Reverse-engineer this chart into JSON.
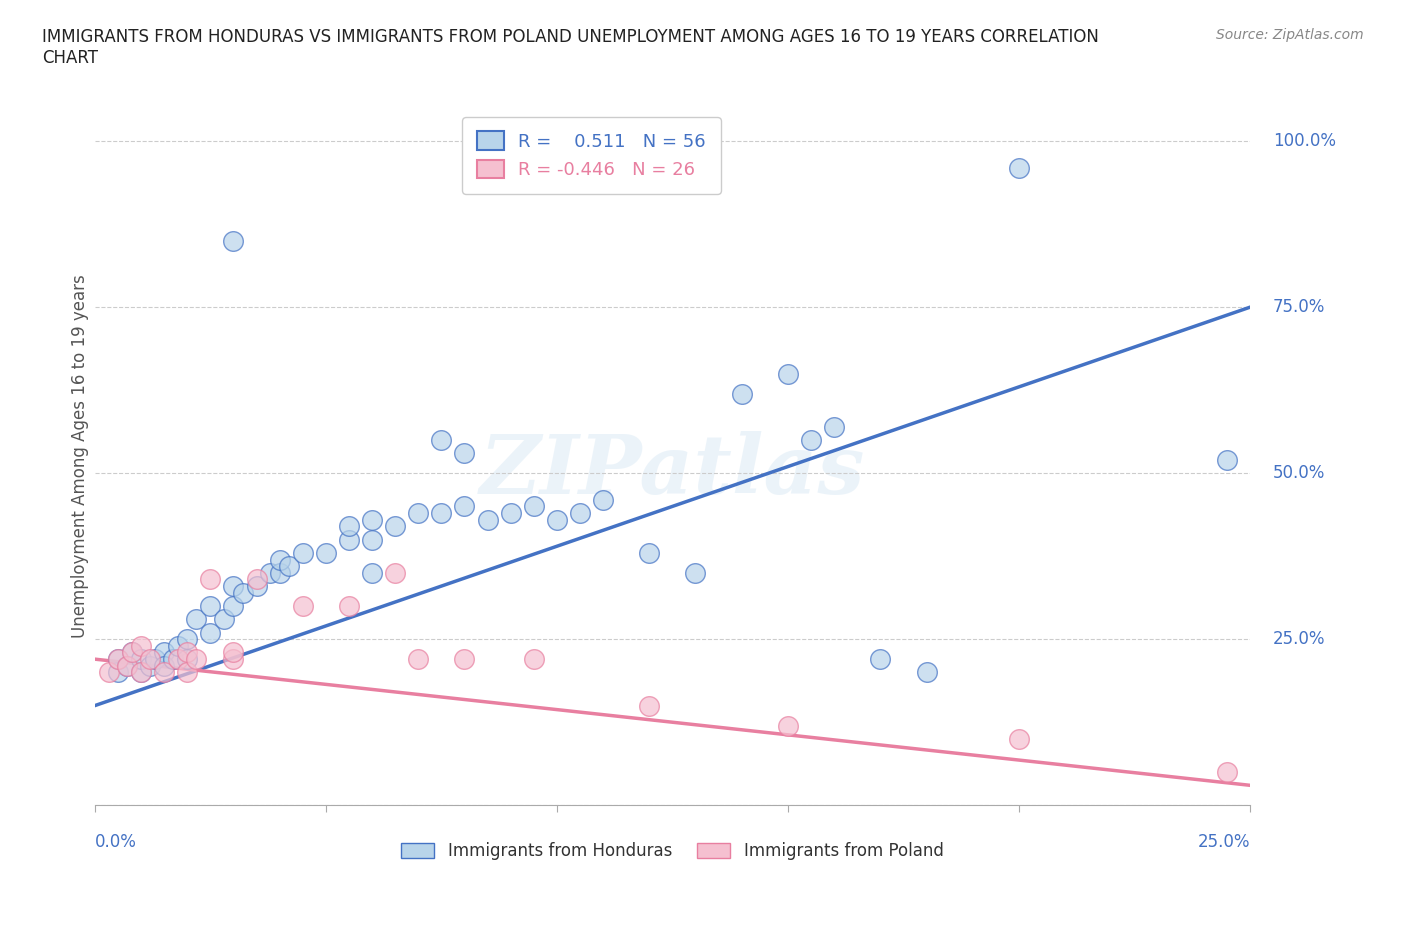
{
  "title": "IMMIGRANTS FROM HONDURAS VS IMMIGRANTS FROM POLAND UNEMPLOYMENT AMONG AGES 16 TO 19 YEARS CORRELATION\nCHART",
  "source": "Source: ZipAtlas.com",
  "honduras_R": "0.511",
  "honduras_N": "56",
  "poland_R": "-0.446",
  "poland_N": "26",
  "legend_label1": "Immigrants from Honduras",
  "legend_label2": "Immigrants from Poland",
  "watermark": "ZIPatlas",
  "honduras_color": "#b8d4ea",
  "poland_color": "#f5c0d0",
  "honduras_line_color": "#4472c4",
  "poland_line_color": "#e87fa0",
  "honduras_scatter": [
    [
      0.5,
      20
    ],
    [
      0.5,
      22
    ],
    [
      0.7,
      21
    ],
    [
      0.8,
      23
    ],
    [
      1.0,
      20
    ],
    [
      1.0,
      22
    ],
    [
      1.2,
      21
    ],
    [
      1.3,
      22
    ],
    [
      1.5,
      23
    ],
    [
      1.5,
      21
    ],
    [
      1.7,
      22
    ],
    [
      1.8,
      24
    ],
    [
      2.0,
      22
    ],
    [
      2.0,
      25
    ],
    [
      2.2,
      28
    ],
    [
      2.5,
      26
    ],
    [
      2.5,
      30
    ],
    [
      2.8,
      28
    ],
    [
      3.0,
      30
    ],
    [
      3.0,
      33
    ],
    [
      3.2,
      32
    ],
    [
      3.5,
      33
    ],
    [
      3.8,
      35
    ],
    [
      4.0,
      35
    ],
    [
      4.0,
      37
    ],
    [
      4.2,
      36
    ],
    [
      4.5,
      38
    ],
    [
      5.0,
      38
    ],
    [
      5.5,
      40
    ],
    [
      5.5,
      42
    ],
    [
      6.0,
      40
    ],
    [
      6.0,
      43
    ],
    [
      6.5,
      42
    ],
    [
      7.0,
      44
    ],
    [
      7.5,
      44
    ],
    [
      8.0,
      45
    ],
    [
      8.5,
      43
    ],
    [
      9.0,
      44
    ],
    [
      9.5,
      45
    ],
    [
      10.0,
      43
    ],
    [
      10.5,
      44
    ],
    [
      11.0,
      46
    ],
    [
      12.0,
      38
    ],
    [
      13.0,
      35
    ],
    [
      14.0,
      62
    ],
    [
      15.0,
      65
    ],
    [
      3.0,
      85
    ],
    [
      20.0,
      96
    ],
    [
      15.5,
      55
    ],
    [
      16.0,
      57
    ],
    [
      7.5,
      55
    ],
    [
      8.0,
      53
    ],
    [
      17.0,
      22
    ],
    [
      18.0,
      20
    ],
    [
      24.5,
      52
    ],
    [
      6.0,
      35
    ]
  ],
  "poland_scatter": [
    [
      0.3,
      20
    ],
    [
      0.5,
      22
    ],
    [
      0.7,
      21
    ],
    [
      0.8,
      23
    ],
    [
      1.0,
      20
    ],
    [
      1.0,
      24
    ],
    [
      1.2,
      22
    ],
    [
      1.5,
      20
    ],
    [
      1.8,
      22
    ],
    [
      2.0,
      20
    ],
    [
      2.0,
      23
    ],
    [
      2.2,
      22
    ],
    [
      2.5,
      34
    ],
    [
      3.0,
      22
    ],
    [
      3.0,
      23
    ],
    [
      3.5,
      34
    ],
    [
      4.5,
      30
    ],
    [
      5.5,
      30
    ],
    [
      6.5,
      35
    ],
    [
      7.0,
      22
    ],
    [
      8.0,
      22
    ],
    [
      9.5,
      22
    ],
    [
      12.0,
      15
    ],
    [
      15.0,
      12
    ],
    [
      20.0,
      10
    ],
    [
      24.5,
      5
    ]
  ],
  "xmin": 0.0,
  "xmax": 25.0,
  "ymin": 0.0,
  "ymax": 105.0,
  "grid_y_values": [
    0,
    25,
    50,
    75,
    100
  ]
}
